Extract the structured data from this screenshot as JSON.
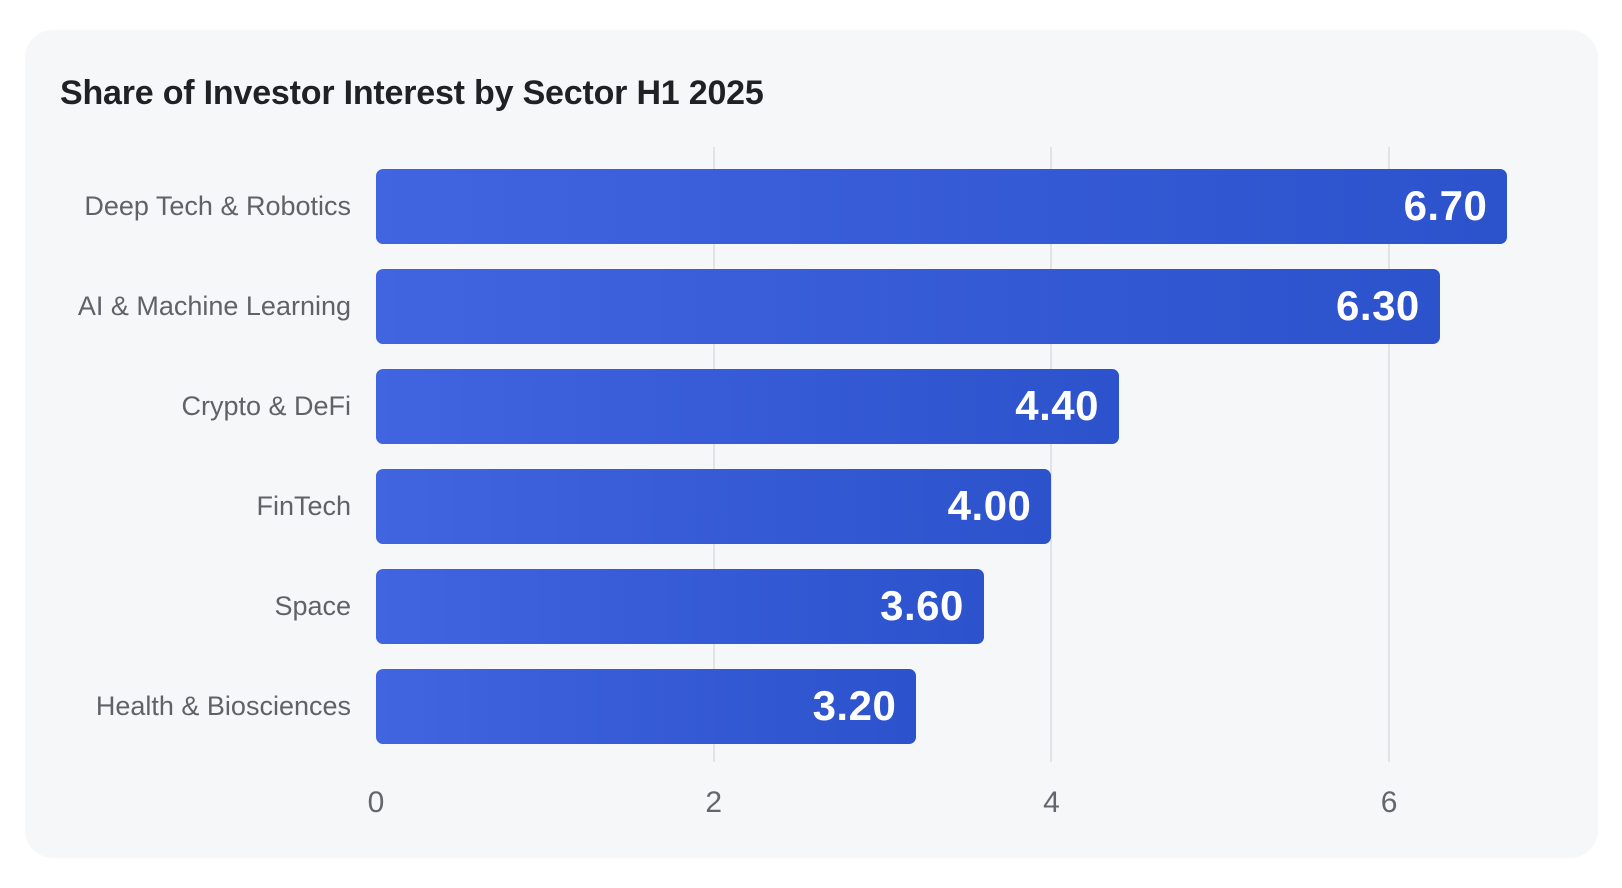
{
  "page": {
    "background": "#ffffff"
  },
  "card": {
    "title": "Share of Investor Interest by Sector H1 2025",
    "background": "#f6f7f9"
  },
  "chart_data": {
    "type": "bar",
    "orientation": "horizontal",
    "title": "Share of Investor Interest by Sector H1 2025",
    "categories": [
      "Deep Tech & Robotics",
      "AI & Machine Learning",
      "Crypto & DeFi",
      "FinTech",
      "Space",
      "Health & Biosciences"
    ],
    "values": [
      6.7,
      6.3,
      4.4,
      4.0,
      3.6,
      3.2
    ],
    "value_labels": [
      "6.70",
      "6.30",
      "4.40",
      "4.00",
      "3.60",
      "3.20"
    ],
    "x_ticks": [
      "0",
      "2",
      "4",
      "6"
    ],
    "x_tick_values": [
      0,
      2,
      4,
      6
    ],
    "xlim": [
      0,
      7
    ],
    "xlabel": "",
    "ylabel": "",
    "legend": "none",
    "grid": "vertical-gridlines-at-2-4-6",
    "colors": {
      "bar_gradient_start": "#4164e1",
      "bar_gradient_end": "#2c52cc",
      "value_label": "#ffffff",
      "category_label": "#5f6368",
      "tick_label": "#63666c",
      "gridline": "#e2e3e7",
      "title": "#1f2124",
      "card_background": "#f6f7f9",
      "page_background": "#ffffff"
    }
  }
}
